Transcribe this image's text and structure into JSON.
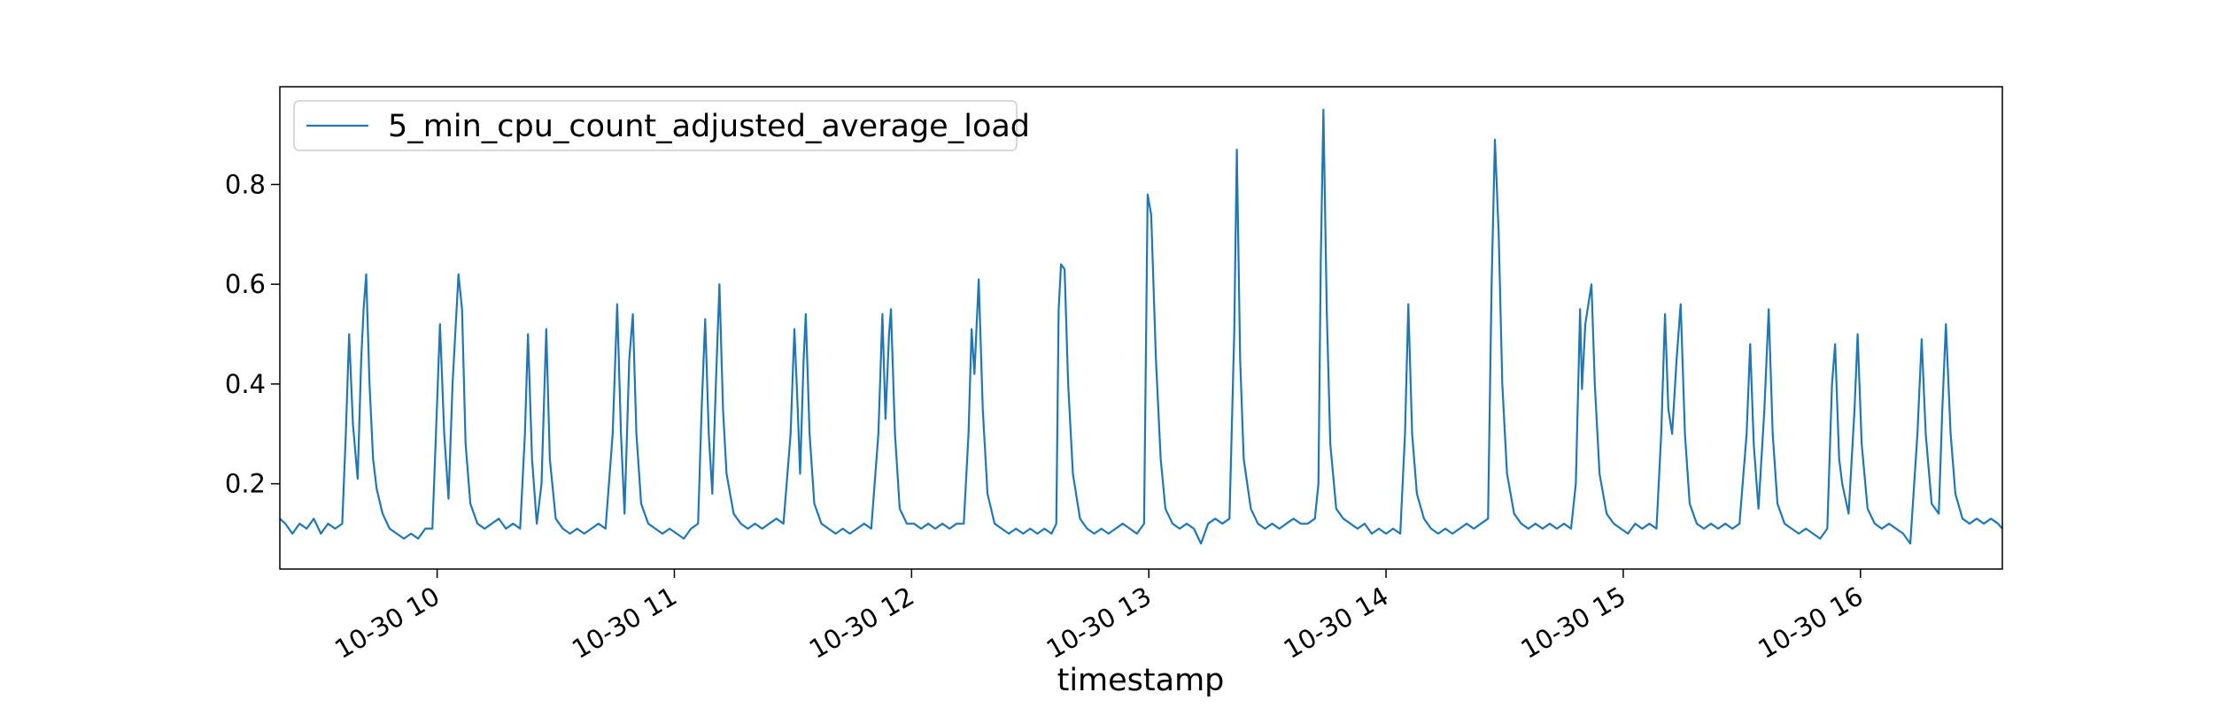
{
  "chart_data": {
    "type": "line",
    "xlabel": "timestamp",
    "x": [
      9.337,
      9.36,
      9.39,
      9.42,
      9.45,
      9.48,
      9.51,
      9.54,
      9.57,
      9.6,
      9.615,
      9.629,
      9.645,
      9.665,
      9.68,
      9.69,
      9.701,
      9.715,
      9.73,
      9.745,
      9.77,
      9.8,
      9.83,
      9.86,
      9.89,
      9.92,
      9.95,
      9.98,
      9.995,
      10.012,
      10.03,
      10.048,
      10.065,
      10.09,
      10.105,
      10.12,
      10.14,
      10.17,
      10.2,
      10.23,
      10.26,
      10.29,
      10.32,
      10.35,
      10.37,
      10.383,
      10.4,
      10.42,
      10.44,
      10.46,
      10.475,
      10.5,
      10.53,
      10.56,
      10.59,
      10.62,
      10.65,
      10.68,
      10.71,
      10.74,
      10.759,
      10.775,
      10.79,
      10.81,
      10.825,
      10.84,
      10.86,
      10.89,
      10.92,
      10.95,
      10.98,
      11.01,
      11.04,
      11.07,
      11.1,
      11.115,
      11.13,
      11.145,
      11.16,
      11.175,
      11.19,
      11.205,
      11.22,
      11.25,
      11.28,
      11.31,
      11.34,
      11.37,
      11.4,
      11.43,
      11.46,
      11.49,
      11.506,
      11.52,
      11.53,
      11.545,
      11.554,
      11.57,
      11.59,
      11.62,
      11.65,
      11.68,
      11.71,
      11.74,
      11.77,
      11.8,
      11.83,
      11.86,
      11.877,
      11.89,
      11.905,
      11.913,
      11.93,
      11.95,
      11.98,
      12.01,
      12.04,
      12.07,
      12.1,
      12.13,
      12.16,
      12.19,
      12.22,
      12.24,
      12.253,
      12.265,
      12.283,
      12.3,
      12.32,
      12.35,
      12.38,
      12.41,
      12.44,
      12.47,
      12.5,
      12.53,
      12.56,
      12.59,
      12.61,
      12.62,
      12.63,
      12.645,
      12.66,
      12.68,
      12.71,
      12.74,
      12.77,
      12.8,
      12.83,
      12.86,
      12.89,
      12.92,
      12.95,
      12.98,
      12.995,
      13.01,
      13.03,
      13.05,
      13.07,
      13.1,
      13.13,
      13.16,
      13.19,
      13.22,
      13.25,
      13.28,
      13.31,
      13.34,
      13.36,
      13.371,
      13.385,
      13.4,
      13.43,
      13.46,
      13.49,
      13.52,
      13.55,
      13.58,
      13.61,
      13.64,
      13.67,
      13.7,
      13.715,
      13.725,
      13.736,
      13.75,
      13.765,
      13.79,
      13.82,
      13.85,
      13.88,
      13.91,
      13.94,
      13.97,
      14.0,
      14.03,
      14.06,
      14.08,
      14.094,
      14.11,
      14.13,
      14.16,
      14.19,
      14.22,
      14.25,
      14.28,
      14.31,
      14.34,
      14.37,
      14.4,
      14.43,
      14.445,
      14.459,
      14.475,
      14.49,
      14.51,
      14.54,
      14.57,
      14.6,
      14.63,
      14.66,
      14.69,
      14.72,
      14.75,
      14.78,
      14.8,
      14.818,
      14.826,
      14.84,
      14.866,
      14.88,
      14.9,
      14.93,
      14.96,
      14.99,
      15.02,
      15.05,
      15.08,
      15.11,
      15.14,
      15.16,
      15.176,
      15.19,
      15.206,
      15.225,
      15.242,
      15.26,
      15.28,
      15.31,
      15.34,
      15.37,
      15.4,
      15.43,
      15.46,
      15.49,
      15.52,
      15.535,
      15.55,
      15.57,
      15.595,
      15.613,
      15.63,
      15.65,
      15.68,
      15.71,
      15.74,
      15.77,
      15.8,
      15.83,
      15.86,
      15.88,
      15.893,
      15.91,
      15.923,
      15.95,
      15.975,
      15.988,
      16.005,
      16.03,
      16.06,
      16.09,
      16.12,
      16.15,
      16.18,
      16.21,
      16.24,
      16.258,
      16.275,
      16.3,
      16.33,
      16.345,
      16.36,
      16.38,
      16.4,
      16.43,
      16.46,
      16.49,
      16.52,
      16.55,
      16.58,
      16.598
    ],
    "series": [
      {
        "name": "5_min_cpu_count_adjusted_average_load",
        "color": "#1f77b4",
        "values": [
          0.13,
          0.12,
          0.1,
          0.12,
          0.11,
          0.13,
          0.1,
          0.12,
          0.11,
          0.12,
          0.3,
          0.5,
          0.32,
          0.21,
          0.45,
          0.55,
          0.62,
          0.4,
          0.25,
          0.19,
          0.14,
          0.11,
          0.1,
          0.09,
          0.1,
          0.09,
          0.11,
          0.11,
          0.3,
          0.52,
          0.3,
          0.17,
          0.4,
          0.62,
          0.55,
          0.28,
          0.16,
          0.12,
          0.11,
          0.12,
          0.13,
          0.11,
          0.12,
          0.11,
          0.3,
          0.5,
          0.25,
          0.12,
          0.2,
          0.51,
          0.25,
          0.13,
          0.11,
          0.1,
          0.11,
          0.1,
          0.11,
          0.12,
          0.11,
          0.3,
          0.56,
          0.3,
          0.14,
          0.45,
          0.54,
          0.3,
          0.16,
          0.12,
          0.11,
          0.1,
          0.11,
          0.1,
          0.09,
          0.11,
          0.12,
          0.35,
          0.53,
          0.3,
          0.18,
          0.4,
          0.6,
          0.35,
          0.22,
          0.14,
          0.12,
          0.11,
          0.12,
          0.11,
          0.12,
          0.13,
          0.12,
          0.3,
          0.51,
          0.35,
          0.22,
          0.45,
          0.54,
          0.3,
          0.16,
          0.12,
          0.11,
          0.1,
          0.11,
          0.1,
          0.11,
          0.12,
          0.11,
          0.3,
          0.54,
          0.33,
          0.5,
          0.55,
          0.3,
          0.15,
          0.12,
          0.12,
          0.11,
          0.12,
          0.11,
          0.12,
          0.11,
          0.12,
          0.12,
          0.3,
          0.51,
          0.42,
          0.61,
          0.35,
          0.18,
          0.12,
          0.11,
          0.1,
          0.11,
          0.1,
          0.11,
          0.1,
          0.11,
          0.1,
          0.12,
          0.55,
          0.64,
          0.63,
          0.4,
          0.22,
          0.13,
          0.11,
          0.1,
          0.11,
          0.1,
          0.11,
          0.12,
          0.11,
          0.1,
          0.12,
          0.78,
          0.74,
          0.45,
          0.25,
          0.15,
          0.12,
          0.11,
          0.12,
          0.11,
          0.08,
          0.12,
          0.13,
          0.12,
          0.13,
          0.5,
          0.87,
          0.45,
          0.25,
          0.15,
          0.12,
          0.11,
          0.12,
          0.11,
          0.12,
          0.13,
          0.12,
          0.12,
          0.13,
          0.2,
          0.65,
          0.95,
          0.55,
          0.28,
          0.15,
          0.13,
          0.12,
          0.11,
          0.12,
          0.1,
          0.11,
          0.1,
          0.11,
          0.1,
          0.3,
          0.56,
          0.3,
          0.18,
          0.13,
          0.11,
          0.1,
          0.11,
          0.1,
          0.11,
          0.12,
          0.11,
          0.12,
          0.13,
          0.6,
          0.89,
          0.7,
          0.4,
          0.22,
          0.14,
          0.12,
          0.11,
          0.12,
          0.11,
          0.12,
          0.11,
          0.12,
          0.11,
          0.2,
          0.55,
          0.39,
          0.52,
          0.6,
          0.4,
          0.22,
          0.14,
          0.12,
          0.11,
          0.1,
          0.12,
          0.11,
          0.12,
          0.11,
          0.3,
          0.54,
          0.35,
          0.3,
          0.45,
          0.56,
          0.3,
          0.16,
          0.12,
          0.11,
          0.12,
          0.11,
          0.12,
          0.11,
          0.12,
          0.3,
          0.48,
          0.28,
          0.15,
          0.35,
          0.55,
          0.3,
          0.16,
          0.12,
          0.11,
          0.1,
          0.11,
          0.1,
          0.09,
          0.11,
          0.4,
          0.48,
          0.25,
          0.2,
          0.14,
          0.35,
          0.5,
          0.28,
          0.15,
          0.12,
          0.11,
          0.12,
          0.11,
          0.1,
          0.08,
          0.3,
          0.49,
          0.3,
          0.16,
          0.14,
          0.35,
          0.52,
          0.3,
          0.18,
          0.13,
          0.12,
          0.13,
          0.12,
          0.13,
          0.12,
          0.11
        ]
      }
    ],
    "xlim": [
      9.337,
      16.598
    ],
    "ylim": [
      0.029,
      0.996
    ],
    "xticks": [
      {
        "value": 10,
        "label": "10-30 10"
      },
      {
        "value": 11,
        "label": "10-30 11"
      },
      {
        "value": 12,
        "label": "10-30 12"
      },
      {
        "value": 13,
        "label": "10-30 13"
      },
      {
        "value": 14,
        "label": "10-30 14"
      },
      {
        "value": 15,
        "label": "10-30 15"
      },
      {
        "value": 16,
        "label": "10-30 16"
      }
    ],
    "yticks": [
      0.2,
      0.4,
      0.6,
      0.8
    ],
    "legend": "upper left",
    "grid": false
  }
}
